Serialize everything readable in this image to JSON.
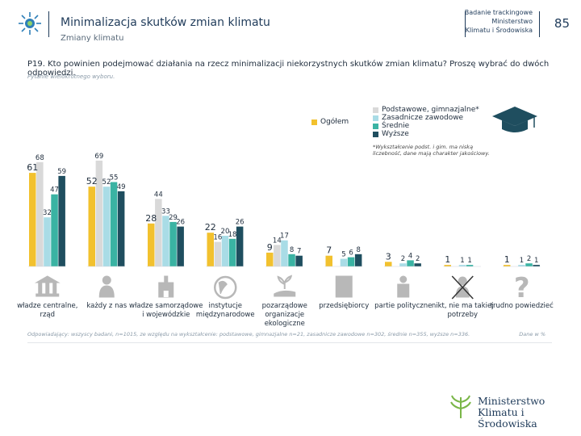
{
  "header": {
    "title": "Minimalizacja skutków zmian klimatu",
    "subtitle": "Zmiany klimatu",
    "brand_lines": [
      "Badanie trackingowe",
      "Ministerstwo",
      "Klimatu i Środowiska"
    ],
    "page_number": "85"
  },
  "question": {
    "text": "P19. Kto powinien podejmować działania na rzecz minimalizacji niekorzystnych skutków zmian klimatu? Proszę wybrać do dwóch odpowiedzi.",
    "note": "Pytanie wielokrotnego wyboru."
  },
  "legend": {
    "items": [
      "Ogółem",
      "Podstawowe, gimnazjalne*",
      "Zasadnicze zawodowe",
      "Średnie",
      "Wyższe"
    ],
    "note": "*Wykształcenie podst. i gim. ma niską liczebność, dane mają charakter jakościowy."
  },
  "colors": {
    "ogolem": "#f2c12e",
    "podstawowe": "#d9d9d9",
    "zasadnicze": "#a9dce6",
    "srednie": "#3ab3a3",
    "wyzsze": "#1f4e5f",
    "icon": "#b8b8b8"
  },
  "chart_data": {
    "type": "bar",
    "title": "P19. Kto powinien podejmować działania na rzecz minimalizacji niekorzystnych skutków zmian klimatu?",
    "ylim": [
      0,
      80
    ],
    "categories": [
      "władze centralne, rząd",
      "każdy z nas",
      "władze samorządowe i wojewódzkie",
      "instytucje międzynarodowe",
      "pozarządowe organizacje ekologiczne",
      "przedsiębiorcy",
      "partie polityczne",
      "nikt, nie ma takiej potrzeby",
      "trudno powiedzieć"
    ],
    "category_icons": [
      "building-icon",
      "person-icon",
      "town-hall-icon",
      "globe-icon",
      "hand-plant-icon",
      "office-building-icon",
      "speaker-icon",
      "crossed-person-icon",
      "question-mark-icon"
    ],
    "series": [
      {
        "name": "Ogółem",
        "values": [
          61,
          52,
          28,
          22,
          9,
          7,
          3,
          1,
          1
        ]
      },
      {
        "name": "Podstawowe, gimnazjalne*",
        "values": [
          68,
          69,
          44,
          16,
          14,
          0,
          0,
          0,
          0
        ]
      },
      {
        "name": "Zasadnicze zawodowe",
        "values": [
          32,
          52,
          33,
          20,
          17,
          5,
          2,
          1,
          1
        ]
      },
      {
        "name": "Średnie",
        "values": [
          47,
          55,
          29,
          18,
          8,
          6,
          4,
          1,
          2
        ]
      },
      {
        "name": "Wyższe",
        "values": [
          59,
          49,
          26,
          26,
          7,
          8,
          2,
          0,
          1
        ]
      }
    ]
  },
  "footer": {
    "base": "Odpowiadający: wszyscy badani, n=1015, ze względu na wykształcenie: podstawowe, gimnazjalne n=21, zasadnicze zawodowe n=302, średnie n=355, wyższe n=336.",
    "ref": "Dane w %"
  },
  "ministry": {
    "line1": "Ministerstwo",
    "line2": "Klimatu i Środowiska"
  }
}
